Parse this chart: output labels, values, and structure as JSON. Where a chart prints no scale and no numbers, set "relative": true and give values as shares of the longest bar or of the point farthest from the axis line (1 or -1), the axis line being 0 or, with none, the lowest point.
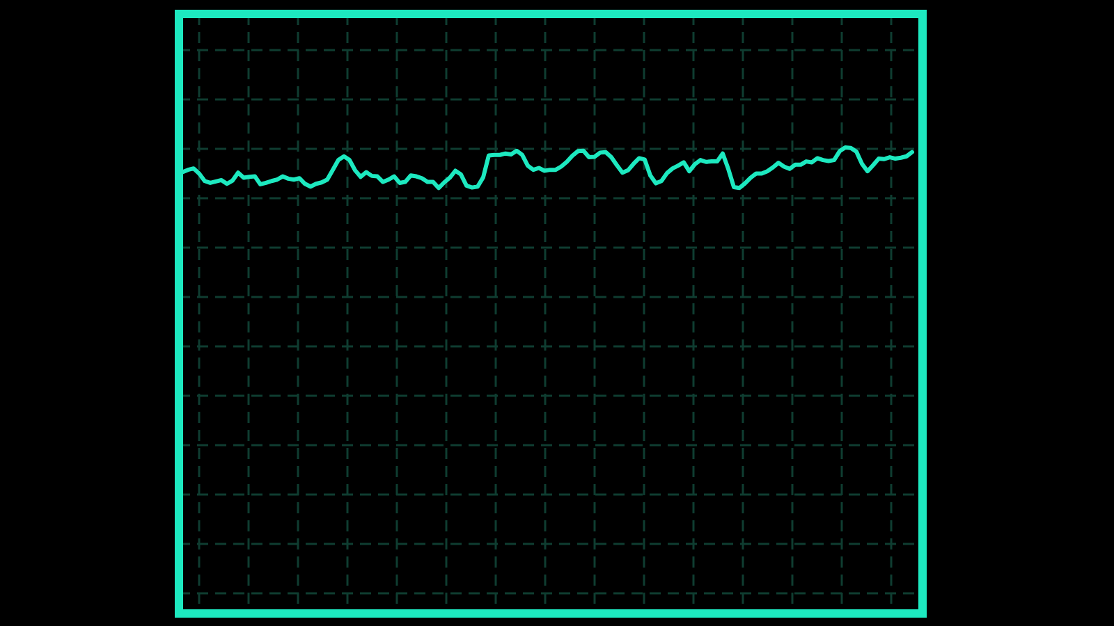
{
  "chart_data": {
    "type": "line",
    "relative": true,
    "grid": true,
    "color": "#1de9c0",
    "categories": [
      null,
      null,
      null,
      null,
      null,
      null,
      null,
      null,
      null,
      null,
      null,
      null,
      null,
      null,
      null,
      null,
      null,
      null,
      null,
      null,
      null,
      null,
      null,
      null,
      null,
      null,
      null,
      null,
      null,
      null,
      null,
      null,
      null,
      null,
      null,
      null,
      null,
      null,
      null,
      null,
      null,
      null,
      null,
      null,
      null,
      null,
      null,
      null,
      null,
      null,
      null,
      null,
      null,
      null,
      null,
      null,
      null,
      null,
      null,
      null,
      null,
      null,
      null,
      null,
      null,
      null,
      null,
      null,
      null,
      null,
      null,
      null,
      null,
      null,
      null,
      null,
      null,
      null,
      null,
      null,
      null,
      null,
      null,
      null,
      null,
      null,
      null,
      null,
      null,
      null,
      null,
      null,
      null,
      null,
      null,
      null,
      null,
      null,
      null,
      null,
      null,
      null,
      null,
      null,
      null,
      null,
      null,
      null,
      null,
      null,
      null,
      null,
      null,
      null,
      null,
      null,
      null,
      null,
      null,
      null,
      null,
      null,
      null,
      null,
      null,
      null,
      null,
      null,
      null,
      null,
      null,
      null
    ],
    "values": [
      0.947,
      0.952,
      0.955,
      0.944,
      0.928,
      0.924,
      0.927,
      0.93,
      0.922,
      0.929,
      0.946,
      0.935,
      0.937,
      0.938,
      0.921,
      0.924,
      0.928,
      0.931,
      0.938,
      0.933,
      0.931,
      0.934,
      0.922,
      0.916,
      0.922,
      0.925,
      0.931,
      0.952,
      0.973,
      0.981,
      0.973,
      0.951,
      0.937,
      0.947,
      0.939,
      0.938,
      0.926,
      0.931,
      0.938,
      0.924,
      0.926,
      0.94,
      0.938,
      0.934,
      0.926,
      0.926,
      0.913,
      0.925,
      0.935,
      0.95,
      0.942,
      0.918,
      0.914,
      0.916,
      0.936,
      0.983,
      0.984,
      0.984,
      0.987,
      0.985,
      0.993,
      0.984,
      0.961,
      0.952,
      0.956,
      0.95,
      0.952,
      0.952,
      0.959,
      0.969,
      0.982,
      0.992,
      0.993,
      0.979,
      0.98,
      0.989,
      0.99,
      0.979,
      0.962,
      0.946,
      0.951,
      0.965,
      0.977,
      0.974,
      0.94,
      0.923,
      0.928,
      0.945,
      0.955,
      0.961,
      0.968,
      0.949,
      0.964,
      0.973,
      0.969,
      0.97,
      0.97,
      0.987,
      0.954,
      0.915,
      0.913,
      0.923,
      0.935,
      0.944,
      0.944,
      0.949,
      0.957,
      0.967,
      0.959,
      0.954,
      0.963,
      0.963,
      0.97,
      0.968,
      0.977,
      0.973,
      0.971,
      0.973,
      0.992,
      1,
      0.999,
      0.991,
      0.965,
      0.949,
      0.962,
      0.976,
      0.975,
      0.979,
      0.976,
      0.978,
      0.981,
      0.99
    ]
  }
}
